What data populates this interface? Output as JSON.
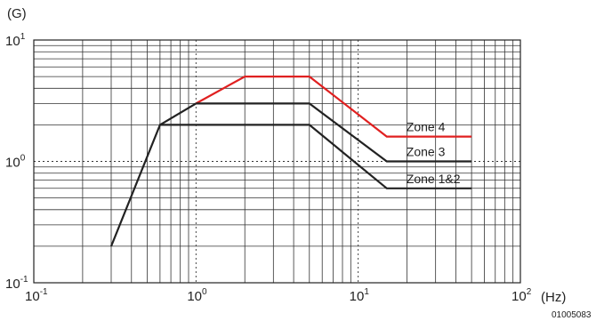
{
  "chart_data": {
    "type": "line",
    "x_scale": "log",
    "y_scale": "log",
    "xlim": [
      0.1,
      100
    ],
    "ylim": [
      0.1,
      10
    ],
    "xlabel": "(Hz)",
    "ylabel": "(G)",
    "x_ticks": [
      {
        "value": 0.1,
        "base": "10",
        "exp": "-1"
      },
      {
        "value": 1,
        "base": "10",
        "exp": "0"
      },
      {
        "value": 10,
        "base": "10",
        "exp": "1"
      },
      {
        "value": 100,
        "base": "10",
        "exp": "2"
      }
    ],
    "y_ticks": [
      {
        "value": 0.1,
        "base": "10",
        "exp": "-1"
      },
      {
        "value": 1,
        "base": "10",
        "exp": "0"
      },
      {
        "value": 10,
        "base": "10",
        "exp": "1"
      }
    ],
    "grid": true,
    "figure_code": "01005083",
    "series": [
      {
        "name": "Zone 4",
        "color": "#e02020",
        "points": [
          [
            1.0,
            3.0
          ],
          [
            2.0,
            5.0
          ],
          [
            5.0,
            5.0
          ],
          [
            15.0,
            1.6
          ],
          [
            50.0,
            1.6
          ]
        ]
      },
      {
        "name": "Zone 3",
        "color": "#222222",
        "points": [
          [
            1.0,
            3.0
          ],
          [
            5.0,
            3.0
          ],
          [
            15.0,
            1.0
          ],
          [
            50.0,
            1.0
          ]
        ]
      },
      {
        "name": "Zone 1&2",
        "color": "#222222",
        "points": [
          [
            0.3,
            0.2
          ],
          [
            0.6,
            2.0
          ],
          [
            5.0,
            2.0
          ],
          [
            15.0,
            0.6
          ],
          [
            50.0,
            0.6
          ]
        ]
      },
      {
        "name": "",
        "color": "#222222",
        "points": [
          [
            0.6,
            2.0
          ],
          [
            1.0,
            3.0
          ]
        ]
      }
    ]
  }
}
